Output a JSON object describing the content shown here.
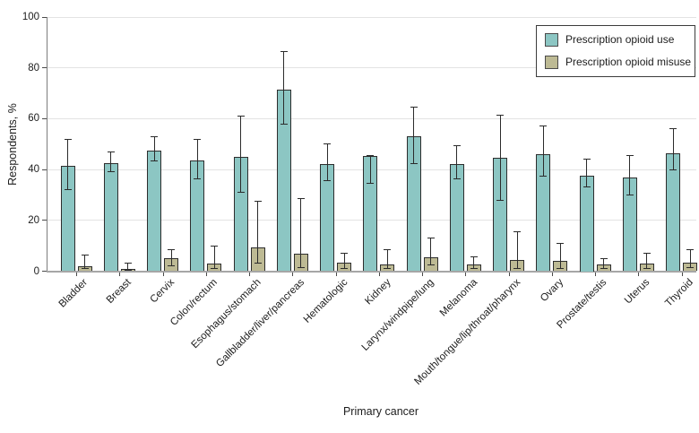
{
  "figure": {
    "xlabel": "Primary cancer",
    "ylabel": "Respondents, %"
  },
  "chart_data": {
    "type": "bar",
    "title": "",
    "xlabel": "Primary cancer",
    "ylabel": "Respondents, %",
    "ylim": [
      0,
      100
    ],
    "yticks": [
      0,
      20,
      40,
      60,
      80,
      100
    ],
    "grid": "horizontal",
    "legend_position": "top-right",
    "error_bars": true,
    "categories": [
      "Bladder",
      "Breast",
      "Cervix",
      "Colon/rectum",
      "Esophagus/stomach",
      "Gallbladder/liver/pancreas",
      "Hematologic",
      "Kidney",
      "Larynx/windpipe/lung",
      "Melanoma",
      "Mouth/tongue/lip/throat/pharynx",
      "Ovary",
      "Prostate/testis",
      "Uterus",
      "Thyroid"
    ],
    "series": [
      {
        "name": "Prescription opioid use",
        "color": "#8cc6c3",
        "values": [
          41.5,
          42.5,
          47.5,
          43.5,
          45.0,
          71.5,
          42.0,
          45.5,
          53.0,
          42.0,
          44.5,
          46.0,
          37.5,
          37.0,
          46.5
        ],
        "error_low": [
          32.0,
          39.0,
          43.5,
          36.5,
          31.0,
          58.0,
          35.5,
          34.5,
          42.5,
          36.5,
          28.0,
          37.5,
          33.0,
          30.0,
          40.0
        ],
        "error_high": [
          52.0,
          47.0,
          53.0,
          52.0,
          61.0,
          86.5,
          50.0,
          45.5,
          64.5,
          49.5,
          61.5,
          57.0,
          44.0,
          45.5,
          56.0
        ]
      },
      {
        "name": "Prescription opioid misuse",
        "color": "#bdba94",
        "values": [
          2.0,
          1.0,
          5.0,
          3.0,
          9.5,
          7.0,
          3.5,
          2.5,
          5.5,
          2.5,
          4.5,
          4.0,
          2.5,
          3.0,
          3.5
        ],
        "error_low": [
          1.0,
          0.5,
          2.0,
          1.0,
          3.0,
          1.5,
          1.0,
          1.0,
          2.5,
          1.0,
          1.0,
          1.0,
          1.0,
          1.0,
          1.5
        ],
        "error_high": [
          6.5,
          3.0,
          8.5,
          10.0,
          27.5,
          28.5,
          7.0,
          8.5,
          13.0,
          5.5,
          15.5,
          11.0,
          5.0,
          7.0,
          8.5
        ]
      }
    ]
  }
}
